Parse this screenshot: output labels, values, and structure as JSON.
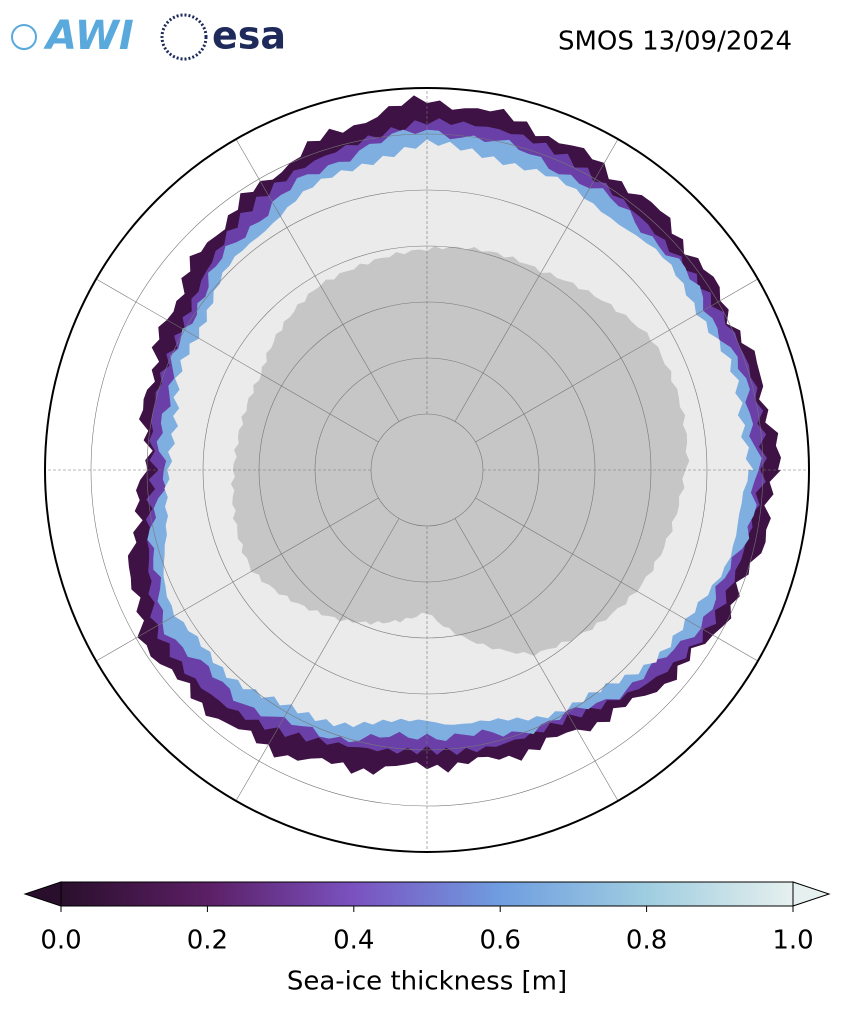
{
  "header": {
    "logos": [
      "AWI",
      "esa"
    ],
    "title": "SMOS 13/09/2024"
  },
  "colorbar": {
    "label": "Sea-ice thickness [m]",
    "lim": [
      0,
      1
    ],
    "ticks": [
      {
        "value": 0,
        "label": "0.0"
      },
      0.2,
      0.4,
      0.6,
      0.8,
      {
        "value": 1,
        "label": "1.0"
      }
    ],
    "colors": [
      "#2a0f2c",
      "#5b1f65",
      "#7a52c0",
      "#6f9de0",
      "#9fcde0",
      "#e6f0ee"
    ]
  }
}
